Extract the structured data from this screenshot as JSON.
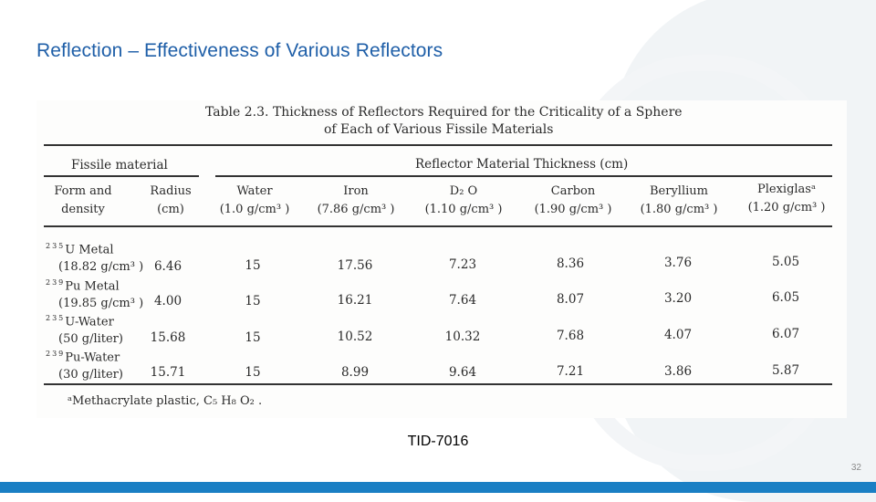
{
  "slide": {
    "title": "Reflection – Effectiveness of Various Reflectors",
    "source": "TID-7016",
    "page_number": "32"
  },
  "table": {
    "title_line1": "Table 2.3.  Thickness of Reflectors Required for the Criticality of a Sphere",
    "title_line2": "of Each of Various Fissile Materials",
    "group_fissile": "Fissile material",
    "group_reflector": "Reflector Material Thickness (cm)",
    "columns": [
      {
        "name": "Form and",
        "unit": "density"
      },
      {
        "name": "Radius",
        "unit": "(cm)"
      },
      {
        "name": "Water",
        "unit": "(1.0 g/cm³ )"
      },
      {
        "name": "Iron",
        "unit": "(7.86 g/cm³ )"
      },
      {
        "name": "D₂ O",
        "unit": "(1.10 g/cm³ )"
      },
      {
        "name": "Carbon",
        "unit": "(1.90 g/cm³ )"
      },
      {
        "name": "Beryllium",
        "unit": "(1.80 g/cm³ )"
      },
      {
        "name": "Plexiglasᵃ",
        "unit": "(1.20 g/cm³ )"
      }
    ],
    "rows": [
      {
        "iso": "235",
        "name": "U Metal",
        "density": "(18.82 g/cm³ )",
        "radius": "6.46",
        "values": [
          "15",
          "17.56",
          "7.23",
          "8.36",
          "3.76",
          "5.05"
        ]
      },
      {
        "iso": "239",
        "name": "Pu Metal",
        "density": "(19.85 g/cm³ )",
        "radius": "4.00",
        "values": [
          "15",
          "16.21",
          "7.64",
          "8.07",
          "3.20",
          "6.05"
        ]
      },
      {
        "iso": "235",
        "name": "U-Water",
        "density": "(50 g/liter)",
        "radius": "15.68",
        "values": [
          "15",
          "10.52",
          "10.32",
          "7.68",
          "4.07",
          "6.07"
        ]
      },
      {
        "iso": "239",
        "name": "Pu-Water",
        "density": "(30 g/liter)",
        "radius": "15.71",
        "values": [
          "15",
          "8.99",
          "9.64",
          "7.21",
          "3.86",
          "5.87"
        ]
      }
    ],
    "footnote": "ᵃMethacrylate plastic, C₅ H₈ O₂ ."
  }
}
